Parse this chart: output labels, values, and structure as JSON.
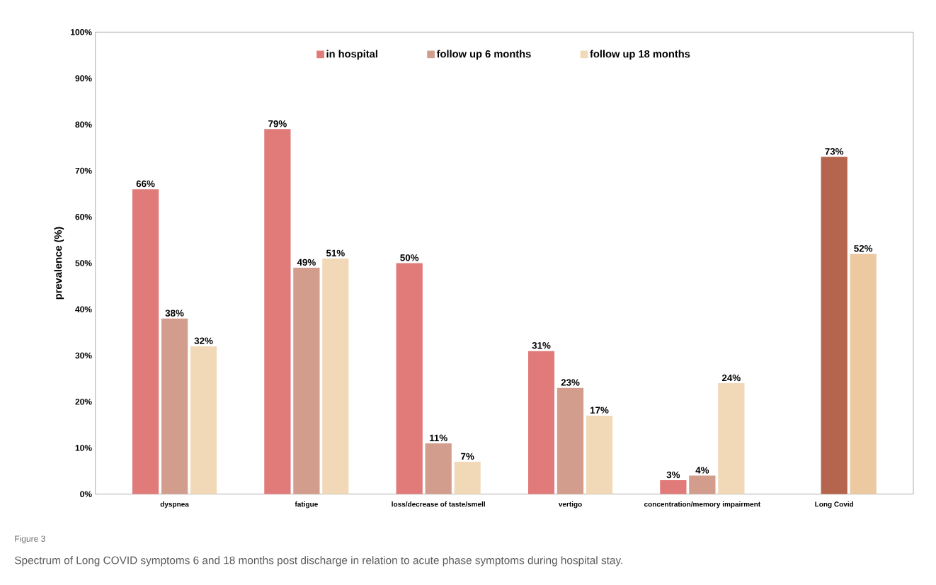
{
  "chart_data": {
    "type": "bar",
    "ylabel": "prevalence (%)",
    "categories": [
      "dyspnea",
      "fatigue",
      "loss/decrease of taste/smell",
      "vertigo",
      "concentration/memory impairment",
      "Long Covid"
    ],
    "series": [
      {
        "name": "in hospital",
        "color": "#e07b7a",
        "values": [
          66,
          79,
          50,
          31,
          3,
          null
        ],
        "value_labels": [
          "66%",
          "79%",
          "50%",
          "31%",
          "3%",
          null
        ]
      },
      {
        "name": "follow up 6 months",
        "color": "#d39d8e",
        "colors": [
          "#d39d8e",
          "#d39d8e",
          "#d39d8e",
          "#d39d8e",
          "#d39d8e",
          "#b5654d"
        ],
        "values": [
          38,
          49,
          11,
          23,
          4,
          73
        ],
        "value_labels": [
          "38%",
          "49%",
          "11%",
          "23%",
          "4%",
          "73%"
        ]
      },
      {
        "name": "follow up 18 months",
        "color": "#f1d9b8",
        "colors": [
          "#f1d9b8",
          "#f1d9b8",
          "#f1d9b8",
          "#f1d9b8",
          "#f1d9b8",
          "#ecc9a0"
        ],
        "values": [
          32,
          51,
          7,
          17,
          24,
          52
        ],
        "value_labels": [
          "32%",
          "51%",
          "7%",
          "17%",
          "24%",
          "52%"
        ]
      }
    ],
    "ylim": [
      0,
      100
    ],
    "yticks": [
      {
        "value": 0,
        "label": "0%"
      },
      {
        "value": 10,
        "label": "10%"
      },
      {
        "value": 20,
        "label": "20%"
      },
      {
        "value": 30,
        "label": "30%"
      },
      {
        "value": 40,
        "label": "40%"
      },
      {
        "value": 50,
        "label": "50%"
      },
      {
        "value": 60,
        "label": "60%"
      },
      {
        "value": 70,
        "label": "70%"
      },
      {
        "value": 80,
        "label": "80%"
      },
      {
        "value": 90,
        "label": "90%"
      },
      {
        "value": 100,
        "label": "100%"
      }
    ],
    "legend": "top",
    "annotations": [
      "Figure 3",
      "Spectrum of Long COVID symptoms 6 and 18 months post discharge in relation to acute phase symptoms during hospital stay."
    ]
  }
}
